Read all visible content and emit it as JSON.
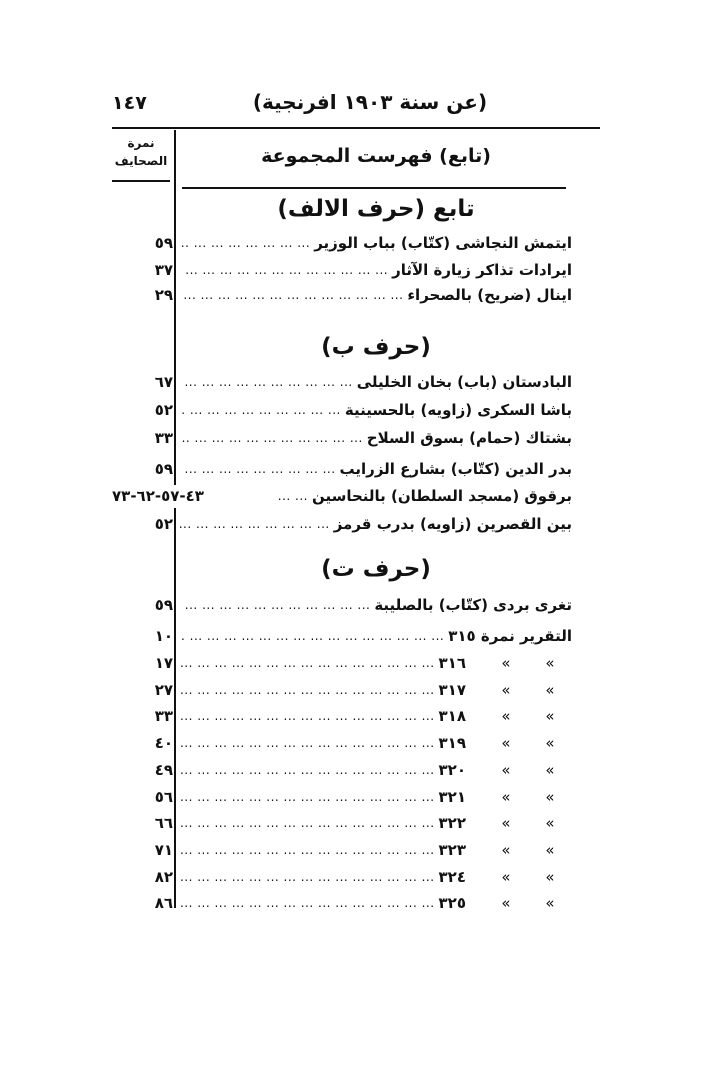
{
  "header": {
    "page_number": "١٤٧",
    "title": "(عن سنة ١٩٠٣ افرنجية)"
  },
  "table_header": {
    "column_pages_line1": "نمرة",
    "column_pages_line2": "الصحايف",
    "column_main": "(تابع) فهرست المجموعة"
  },
  "dots": "... ... ... ... ... ... ... ... ... ... ... ... ... ... ... ... ... ... ... ... ... ...",
  "sections": [
    {
      "title": "تابع (حرف الالف)",
      "entries": [
        {
          "label": "ايتمش النجاشى (كتّاب) بباب الوزير",
          "pages": "٥٩"
        },
        {
          "label": "ايرادات تذاكر زيارة الآثار",
          "pages": "٣٧"
        },
        {
          "label": "اينال (ضريح) بالصحراء",
          "pages": "٢٩"
        }
      ]
    },
    {
      "title": "(حرف ب)",
      "entries": [
        {
          "label": "البادستان (باب) بخان الخليلى",
          "pages": "٦٧"
        },
        {
          "label": "باشا السكرى (زاويه) بالحسينية",
          "pages": "٥٢"
        },
        {
          "label": "بشتاك (حمام) بسوق السلاح",
          "pages": "٣٣"
        },
        {
          "label": "بدر الدين (كتّاب) بشارع الزرايب",
          "pages": "٥٩"
        },
        {
          "label": "برقوق (مسجد السلطان) بالنحاسين",
          "pages": "٤٣-٥٧-٦٢-٧٣"
        },
        {
          "label": "بين القصرين (زاويه) بدرب قرمز",
          "pages": "٥٢"
        }
      ]
    },
    {
      "title": "(حرف ت)",
      "entries": [
        {
          "label": "تغرى بردى (كتّاب) بالصليبة",
          "pages": "٥٩"
        },
        {
          "label": "التقرير نمرة ٣١٥",
          "pages": "١٠"
        }
      ],
      "report_continuations": {
        "ditto": "»",
        "items": [
          {
            "number": "٣١٦",
            "pages": "١٧"
          },
          {
            "number": "٣١٧",
            "pages": "٢٧"
          },
          {
            "number": "٣١٨",
            "pages": "٣٣"
          },
          {
            "number": "٣١٩",
            "pages": "٤٠"
          },
          {
            "number": "٣٢٠",
            "pages": "٤٩"
          },
          {
            "number": "٣٢١",
            "pages": "٥٦"
          },
          {
            "number": "٣٢٢",
            "pages": "٦٦"
          },
          {
            "number": "٣٢٣",
            "pages": "٧١"
          },
          {
            "number": "٣٢٤",
            "pages": "٨٢"
          },
          {
            "number": "٣٢٥",
            "pages": "٨٦"
          }
        ]
      }
    }
  ]
}
